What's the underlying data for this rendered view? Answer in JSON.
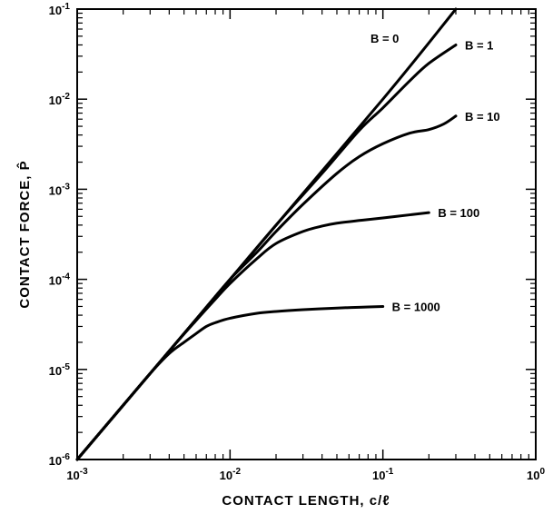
{
  "chart_data": {
    "type": "line",
    "title": "",
    "xlabel": "CONTACT LENGTH, c/ℓ",
    "ylabel": "CONTACT FORCE, P̂",
    "x_scale": "log",
    "y_scale": "log",
    "xlim": [
      0.001,
      1
    ],
    "ylim": [
      1e-06,
      0.1
    ],
    "grid": false,
    "x_tick_labels": [
      {
        "base": "10",
        "exp": "-3"
      },
      {
        "base": "10",
        "exp": "-2"
      },
      {
        "base": "10",
        "exp": "-1"
      },
      {
        "base": "10",
        "exp": "0"
      }
    ],
    "y_tick_labels": [
      {
        "base": "10",
        "exp": "-6"
      },
      {
        "base": "10",
        "exp": "-5"
      },
      {
        "base": "10",
        "exp": "-4"
      },
      {
        "base": "10",
        "exp": "-3"
      },
      {
        "base": "10",
        "exp": "-2"
      },
      {
        "base": "10",
        "exp": "-1"
      }
    ],
    "series": [
      {
        "name": "B = 0",
        "x": [
          0.001,
          0.01,
          0.1,
          0.3
        ],
        "y": [
          1e-06,
          0.0001,
          0.01,
          0.1
        ]
      },
      {
        "name": "B = 1",
        "x": [
          0.001,
          0.005,
          0.01,
          0.02,
          0.04,
          0.07,
          0.1,
          0.15,
          0.2,
          0.3
        ],
        "y": [
          1e-06,
          2.5e-05,
          0.0001,
          0.0004,
          0.0015,
          0.0045,
          0.008,
          0.016,
          0.025,
          0.04
        ]
      },
      {
        "name": "B = 10",
        "x": [
          0.001,
          0.003,
          0.006,
          0.01,
          0.015,
          0.02,
          0.03,
          0.05,
          0.07,
          0.1,
          0.15,
          0.2,
          0.25,
          0.3
        ],
        "y": [
          1e-06,
          9e-06,
          3.6e-05,
          0.0001,
          0.0002,
          0.00034,
          0.00068,
          0.0015,
          0.0023,
          0.0032,
          0.0042,
          0.0046,
          0.0053,
          0.0065
        ]
      },
      {
        "name": "B = 100",
        "x": [
          0.001,
          0.002,
          0.004,
          0.006,
          0.008,
          0.01,
          0.015,
          0.02,
          0.03,
          0.04,
          0.05,
          0.07,
          0.1,
          0.15,
          0.2
        ],
        "y": [
          1e-06,
          4e-06,
          1.6e-05,
          3.5e-05,
          6e-05,
          9e-05,
          0.00017,
          0.00025,
          0.00034,
          0.00039,
          0.00042,
          0.00045,
          0.00048,
          0.00052,
          0.00055
        ]
      },
      {
        "name": "B = 1000",
        "x": [
          0.001,
          0.002,
          0.003,
          0.004,
          0.005,
          0.006,
          0.007,
          0.008,
          0.01,
          0.015,
          0.02,
          0.03,
          0.05,
          0.07,
          0.1
        ],
        "y": [
          1e-06,
          4e-06,
          9e-06,
          1.5e-05,
          2e-05,
          2.5e-05,
          3e-05,
          3.3e-05,
          3.7e-05,
          4.2e-05,
          4.4e-05,
          4.6e-05,
          4.8e-05,
          4.9e-05,
          5e-05
        ]
      }
    ]
  }
}
